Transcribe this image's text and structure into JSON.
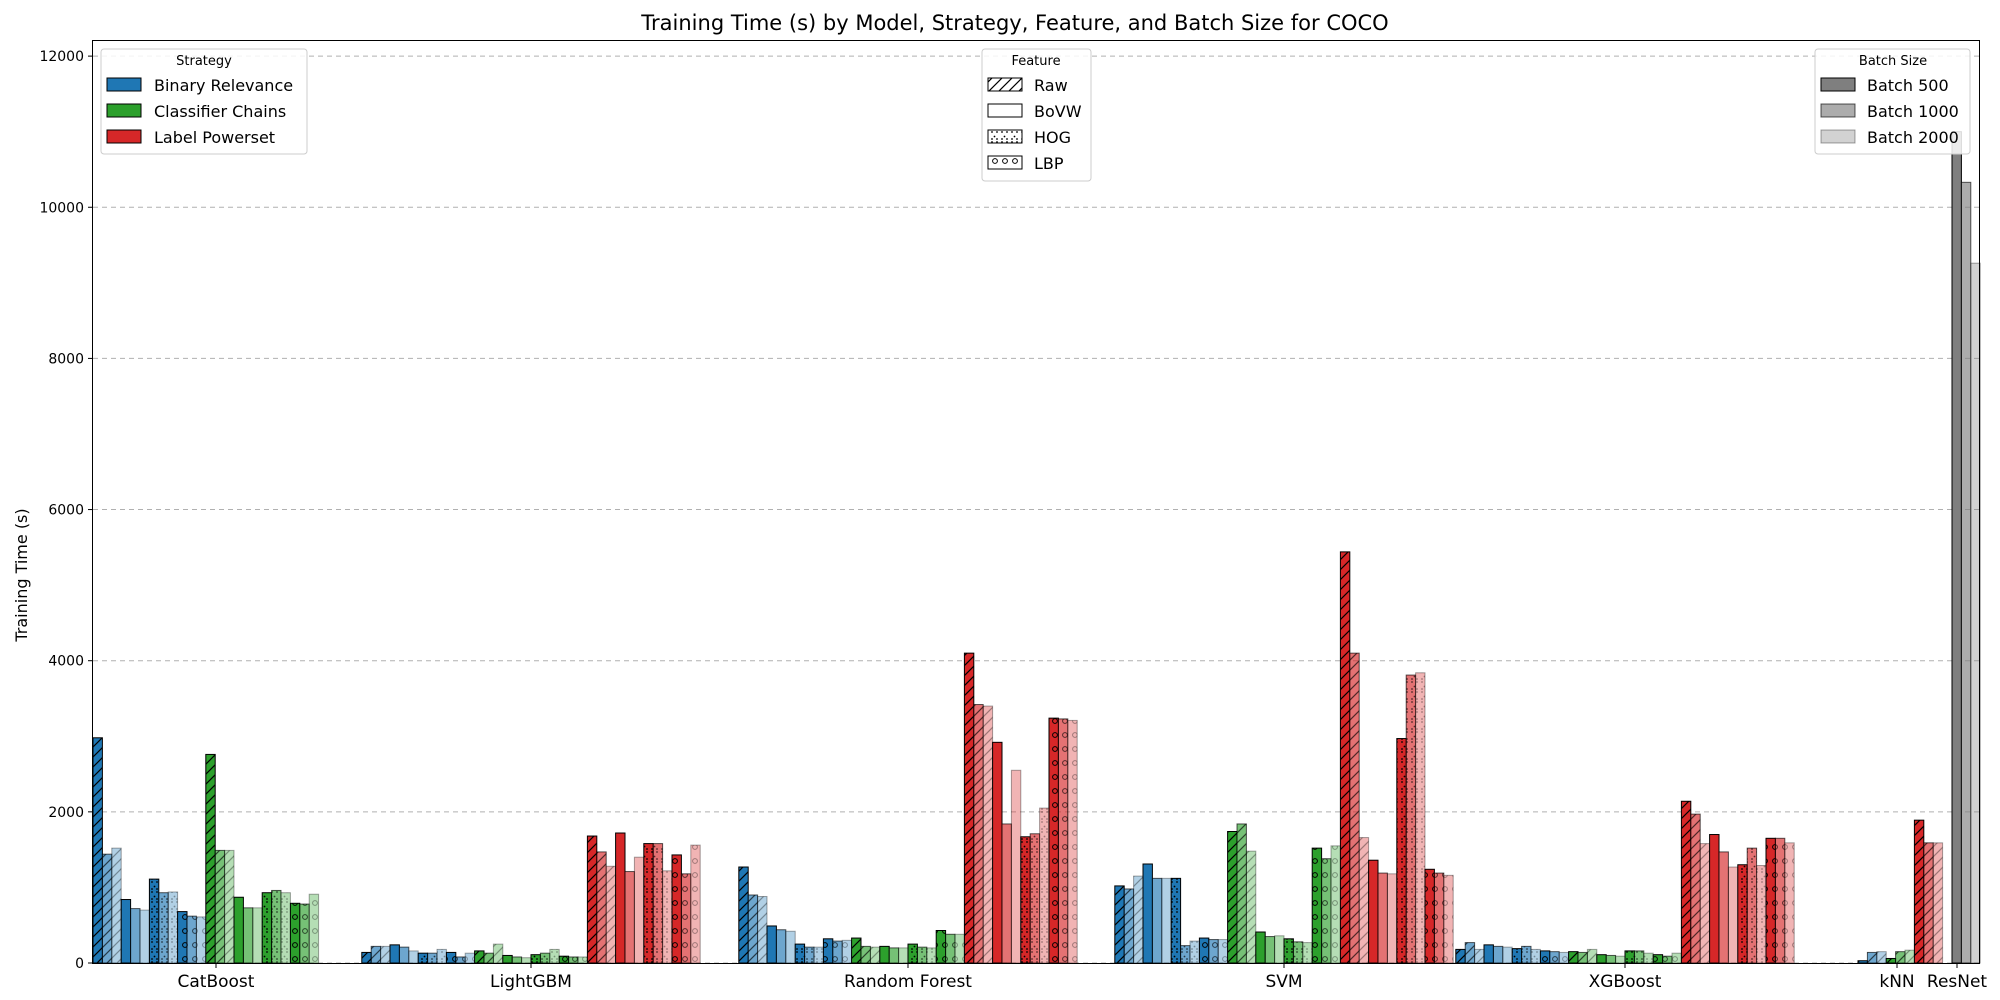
{
  "chart_data": {
    "type": "bar",
    "title": "Training Time (s) by Model, Strategy, Feature, and Batch Size for COCO",
    "ylabel": "Training Time (s)",
    "xlabel": "",
    "ylim": [
      0,
      12200
    ],
    "yticks": [
      0,
      2000,
      4000,
      6000,
      8000,
      10000,
      12000
    ],
    "grid": "y-dashed",
    "models": [
      "CatBoost",
      "LightGBM",
      "Random Forest",
      "SVM",
      "XGBoost",
      "kNN",
      "ResNet"
    ],
    "strategies": [
      "Binary Relevance",
      "Classifier Chains",
      "Label Powerset"
    ],
    "features": [
      "Raw",
      "BoVW",
      "HOG",
      "LBP"
    ],
    "batches": [
      "Batch 500",
      "Batch 1000",
      "Batch 2000"
    ],
    "colors": {
      "Binary Relevance": "#1f77b4",
      "Classifier Chains": "#2ca02c",
      "Label Powerset": "#d62728",
      "ResNet": "#7f7f7f"
    },
    "legends": {
      "strategy": {
        "title": "Strategy",
        "placement": "top-left",
        "items": [
          "Binary Relevance",
          "Classifier Chains",
          "Label Powerset"
        ]
      },
      "feature": {
        "title": "Feature",
        "placement": "top-center",
        "items": [
          "Raw",
          "BoVW",
          "HOG",
          "LBP"
        ]
      },
      "batch": {
        "title": "Batch Size",
        "placement": "top-right",
        "items": [
          "Batch 500",
          "Batch 1000",
          "Batch 2000"
        ]
      }
    },
    "values": {
      "CatBoost": {
        "Binary Relevance": {
          "Raw": [
            2980,
            1440,
            1520
          ],
          "BoVW": [
            840,
            720,
            700
          ],
          "HOG": [
            1110,
            930,
            940
          ],
          "LBP": [
            680,
            620,
            610
          ]
        },
        "Classifier Chains": {
          "Raw": [
            2760,
            1490,
            1490
          ],
          "BoVW": [
            870,
            730,
            730
          ],
          "HOG": [
            930,
            960,
            930
          ],
          "LBP": [
            790,
            780,
            910
          ]
        },
        "Label Powerset": null
      },
      "LightGBM": {
        "Binary Relevance": {
          "Raw": [
            140,
            220,
            220
          ],
          "BoVW": [
            240,
            210,
            160
          ],
          "HOG": [
            130,
            130,
            180
          ],
          "LBP": [
            140,
            80,
            130
          ]
        },
        "Classifier Chains": {
          "Raw": [
            160,
            130,
            250
          ],
          "BoVW": [
            100,
            80,
            70
          ],
          "HOG": [
            110,
            130,
            180
          ],
          "LBP": [
            90,
            80,
            80
          ]
        },
        "Label Powerset": {
          "Raw": [
            1680,
            1470,
            1280
          ],
          "BoVW": [
            1720,
            1210,
            1400
          ],
          "HOG": [
            1580,
            1580,
            1220
          ],
          "LBP": [
            1430,
            1180,
            1560
          ]
        }
      },
      "Random Forest": {
        "Binary Relevance": {
          "Raw": [
            1270,
            900,
            880
          ],
          "BoVW": [
            490,
            440,
            420
          ],
          "HOG": [
            250,
            210,
            210
          ],
          "LBP": [
            320,
            290,
            300
          ]
        },
        "Classifier Chains": {
          "Raw": [
            330,
            220,
            210
          ],
          "BoVW": [
            220,
            200,
            200
          ],
          "HOG": [
            250,
            210,
            200
          ],
          "LBP": [
            430,
            380,
            380
          ]
        },
        "Label Powerset": {
          "Raw": [
            4100,
            3420,
            3400
          ],
          "BoVW": [
            2920,
            1840,
            2550
          ],
          "HOG": [
            1670,
            1710,
            2050
          ],
          "LBP": [
            3240,
            3230,
            3210
          ]
        }
      },
      "SVM": {
        "Binary Relevance": {
          "Raw": [
            1020,
            980,
            1150
          ],
          "BoVW": [
            1310,
            1120,
            1120
          ],
          "HOG": [
            1120,
            230,
            290
          ],
          "LBP": [
            330,
            310,
            310
          ]
        },
        "Classifier Chains": {
          "Raw": [
            1740,
            1840,
            1480
          ],
          "BoVW": [
            410,
            350,
            360
          ],
          "HOG": [
            320,
            280,
            270
          ],
          "LBP": [
            1520,
            1380,
            1550
          ]
        },
        "Label Powerset": {
          "Raw": [
            5440,
            4100,
            1660
          ],
          "BoVW": [
            1360,
            1190,
            1180
          ],
          "HOG": [
            2970,
            3810,
            3840
          ],
          "LBP": [
            1240,
            1190,
            1160
          ]
        }
      },
      "XGBoost": {
        "Binary Relevance": {
          "Raw": [
            180,
            270,
            180
          ],
          "BoVW": [
            240,
            220,
            210
          ],
          "HOG": [
            190,
            220,
            180
          ],
          "LBP": [
            160,
            150,
            140
          ]
        },
        "Classifier Chains": {
          "Raw": [
            150,
            140,
            180
          ],
          "BoVW": [
            110,
            100,
            90
          ],
          "HOG": [
            160,
            160,
            130
          ],
          "LBP": [
            110,
            90,
            130
          ]
        },
        "Label Powerset": {
          "Raw": [
            2140,
            1970,
            1580
          ],
          "BoVW": [
            1700,
            1470,
            1270
          ],
          "HOG": [
            1300,
            1520,
            1290
          ],
          "LBP": [
            1650,
            1650,
            1590
          ]
        }
      },
      "kNN": {
        "Binary Relevance": {
          "Raw": [
            30,
            140,
            150
          ]
        },
        "Classifier Chains": {
          "Raw": [
            60,
            150,
            170
          ]
        },
        "Label Powerset": {
          "Raw": [
            1890,
            1590,
            1590
          ]
        }
      },
      "ResNet": {
        "Batch 500": 11000,
        "Batch 1000": 10330,
        "Batch 2000": 9260
      }
    }
  }
}
